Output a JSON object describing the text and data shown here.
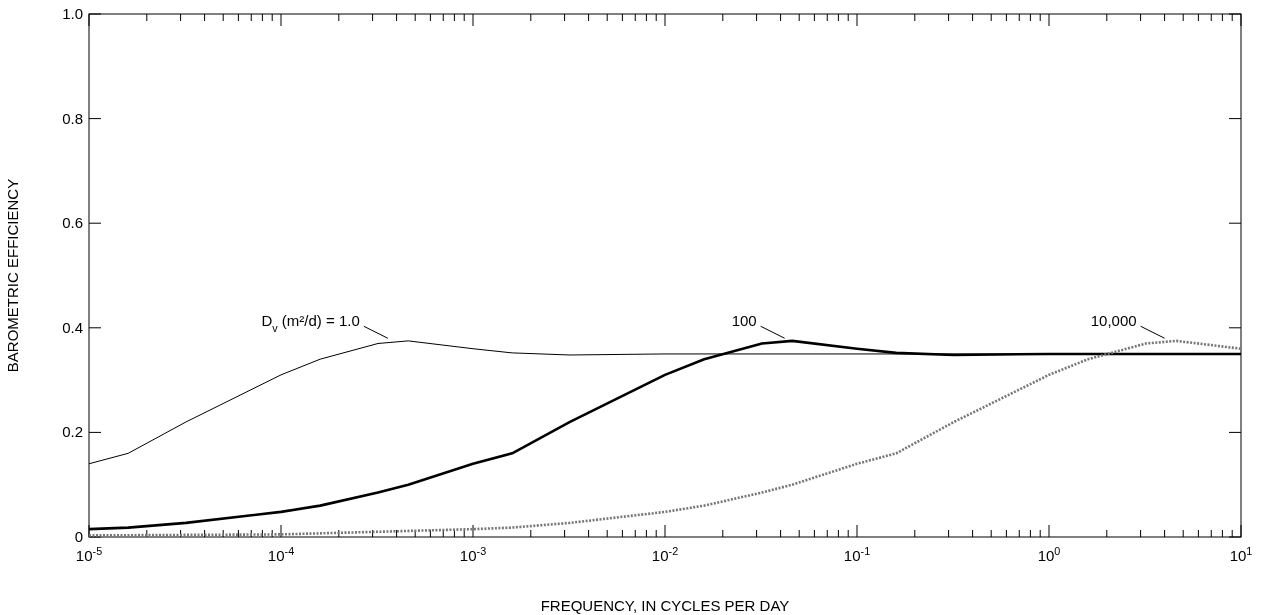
{
  "chart_data": {
    "type": "line",
    "xlabel": "FREQUENCY, IN CYCLES PER DAY",
    "ylabel": "BAROMETRIC EFFICIENCY",
    "log": "x",
    "grid": false,
    "xlim": [
      1e-05,
      10
    ],
    "ylim": [
      0,
      1
    ],
    "xticks": [
      {
        "value": 1e-05,
        "label": "10$^{-5}$"
      },
      {
        "value": 2e-05,
        "label": null
      },
      {
        "value": 3e-05,
        "label": null
      },
      {
        "value": 4e-05,
        "label": null
      },
      {
        "value": 5e-05,
        "label": null
      },
      {
        "value": 6e-05,
        "label": null
      },
      {
        "value": 7e-05,
        "label": null
      },
      {
        "value": 8e-05,
        "label": null
      },
      {
        "value": 9e-05,
        "label": null
      },
      {
        "value": 0.0001,
        "label": "10$^{-4}$"
      },
      {
        "value": 0.0002,
        "label": null
      },
      {
        "value": 0.0003,
        "label": null
      },
      {
        "value": 0.0004,
        "label": null
      },
      {
        "value": 0.0005,
        "label": null
      },
      {
        "value": 0.0006,
        "label": null
      },
      {
        "value": 0.0007,
        "label": null
      },
      {
        "value": 0.0008,
        "label": null
      },
      {
        "value": 0.0009,
        "label": null
      },
      {
        "value": 0.001,
        "label": "10$^{-3}$"
      },
      {
        "value": 0.002,
        "label": null
      },
      {
        "value": 0.003,
        "label": null
      },
      {
        "value": 0.004,
        "label": null
      },
      {
        "value": 0.005,
        "label": null
      },
      {
        "value": 0.006,
        "label": null
      },
      {
        "value": 0.007,
        "label": null
      },
      {
        "value": 0.008,
        "label": null
      },
      {
        "value": 0.009,
        "label": null
      },
      {
        "value": 0.01,
        "label": "10$^{-2}$"
      },
      {
        "value": 0.02,
        "label": null
      },
      {
        "value": 0.03,
        "label": null
      },
      {
        "value": 0.04,
        "label": null
      },
      {
        "value": 0.05,
        "label": null
      },
      {
        "value": 0.06,
        "label": null
      },
      {
        "value": 0.07,
        "label": null
      },
      {
        "value": 0.08,
        "label": null
      },
      {
        "value": 0.09,
        "label": null
      },
      {
        "value": 0.1,
        "label": "10$^{-1}$"
      },
      {
        "value": 0.2,
        "label": null
      },
      {
        "value": 0.3,
        "label": null
      },
      {
        "value": 0.4,
        "label": null
      },
      {
        "value": 0.5,
        "label": null
      },
      {
        "value": 0.6,
        "label": null
      },
      {
        "value": 0.7,
        "label": null
      },
      {
        "value": 0.8,
        "label": null
      },
      {
        "value": 0.9,
        "label": null
      },
      {
        "value": 1,
        "label": "10$^{0}$"
      },
      {
        "value": 2,
        "label": null
      },
      {
        "value": 3,
        "label": null
      },
      {
        "value": 4,
        "label": null
      },
      {
        "value": 5,
        "label": null
      },
      {
        "value": 6,
        "label": null
      },
      {
        "value": 7,
        "label": null
      },
      {
        "value": 8,
        "label": null
      },
      {
        "value": 9,
        "label": null
      },
      {
        "value": 10,
        "label": "10$^{1}$"
      }
    ],
    "yticks": [
      0,
      0.2,
      0.4,
      0.6,
      0.8,
      {
        "value": 1,
        "label": "1.0"
      }
    ],
    "series": [
      {
        "color": "#000000",
        "line_style": "solid",
        "x": [
          1e-05,
          1.6e-05,
          3.2e-05,
          0.0001,
          0.00016,
          0.00032,
          0.00046,
          0.001,
          0.0016,
          0.0032,
          0.01,
          0.1,
          1,
          10
        ],
        "values": [
          0.14,
          0.16,
          0.22,
          0.31,
          0.34,
          0.37,
          0.375,
          0.36,
          0.352,
          0.348,
          0.35,
          0.35,
          0.35,
          0.35
        ]
      },
      {
        "color": "#000000",
        "line_style": "solid",
        "x": [
          1e-05,
          1.6e-05,
          3.2e-05,
          0.0001,
          0.00016,
          0.00032,
          0.00046,
          0.001,
          0.0016,
          0.0032,
          0.01,
          0.016,
          0.032,
          0.046,
          0.1,
          0.16,
          0.32,
          1,
          10
        ],
        "values": [
          0.015,
          0.018,
          0.027,
          0.048,
          0.06,
          0.085,
          0.1,
          0.14,
          0.16,
          0.22,
          0.31,
          0.34,
          0.37,
          0.375,
          0.36,
          0.352,
          0.348,
          0.35,
          0.35
        ]
      },
      {
        "color": "#777777",
        "line_style": "dotted",
        "x": [
          1e-05,
          0.0001,
          0.00032,
          0.001,
          0.0016,
          0.0032,
          0.01,
          0.016,
          0.032,
          0.046,
          0.1,
          0.16,
          0.32,
          1,
          1.6,
          3.2,
          4.6,
          10
        ],
        "values": [
          0.003,
          0.005,
          0.01,
          0.015,
          0.018,
          0.027,
          0.048,
          0.06,
          0.085,
          0.1,
          0.14,
          0.16,
          0.22,
          0.31,
          0.34,
          0.37,
          0.375,
          0.36
        ]
      }
    ],
    "annotations": [
      {
        "text": "D$_{v}$ (m²/d) = 1.0",
        "x": 0.00036,
        "y": 0.38
      },
      {
        "text": "100",
        "x": 0.042,
        "y": 0.38
      },
      {
        "text": "10,000",
        "x": 4,
        "y": 0.38
      }
    ]
  }
}
